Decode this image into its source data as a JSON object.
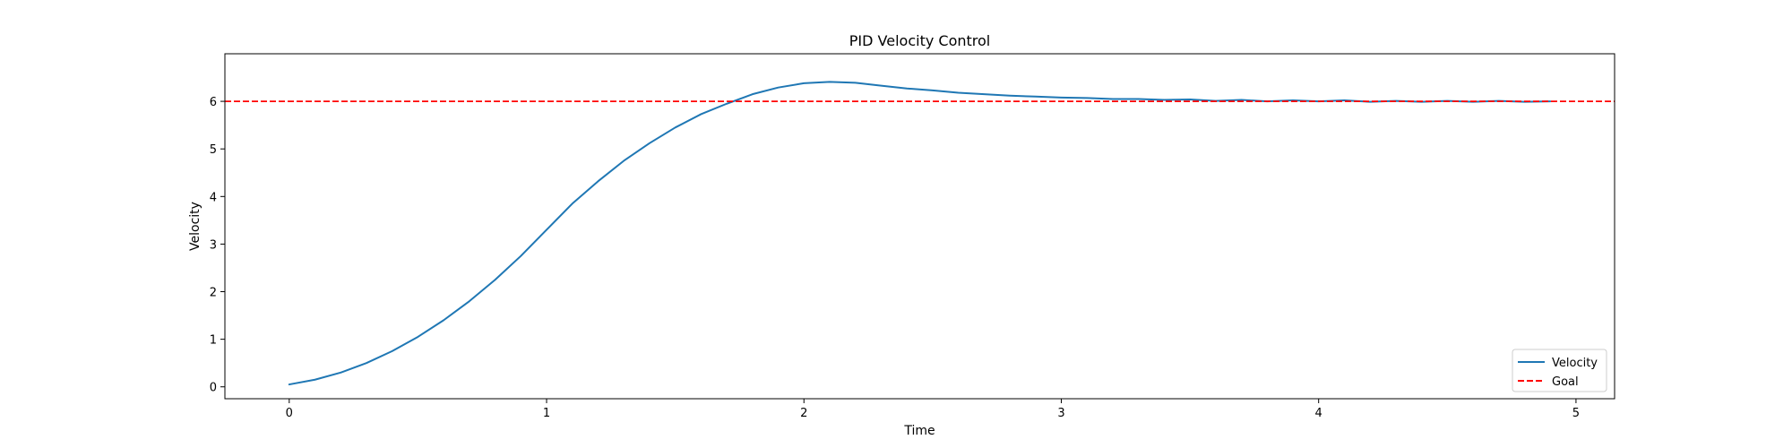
{
  "chart_data": {
    "type": "line",
    "title": "PID Velocity Control",
    "xlabel": "Time",
    "ylabel": "Velocity",
    "xlim": [
      -0.25,
      5.15
    ],
    "ylim": [
      -0.25,
      7.0
    ],
    "xticks": [
      0,
      1,
      2,
      3,
      4,
      5
    ],
    "yticks": [
      0,
      1,
      2,
      3,
      4,
      5,
      6
    ],
    "grid": false,
    "legend_position": "lower right",
    "series": [
      {
        "name": "Velocity",
        "color": "#1f77b4",
        "style": "solid",
        "x": [
          0.0,
          0.1,
          0.2,
          0.3,
          0.4,
          0.5,
          0.6,
          0.7,
          0.8,
          0.9,
          1.0,
          1.1,
          1.2,
          1.3,
          1.4,
          1.5,
          1.6,
          1.7,
          1.8,
          1.9,
          2.0,
          2.1,
          2.2,
          2.3,
          2.4,
          2.5,
          2.6,
          2.7,
          2.8,
          2.9,
          3.0,
          3.1,
          3.2,
          3.3,
          3.4,
          3.5,
          3.6,
          3.7,
          3.8,
          3.9,
          4.0,
          4.1,
          4.2,
          4.3,
          4.4,
          4.5,
          4.6,
          4.7,
          4.8,
          4.9
        ],
        "y": [
          0.05,
          0.15,
          0.3,
          0.5,
          0.75,
          1.05,
          1.4,
          1.8,
          2.25,
          2.75,
          3.3,
          3.85,
          4.32,
          4.75,
          5.12,
          5.45,
          5.73,
          5.95,
          6.15,
          6.29,
          6.38,
          6.41,
          6.39,
          6.33,
          6.27,
          6.23,
          6.18,
          6.15,
          6.12,
          6.1,
          6.08,
          6.07,
          6.05,
          6.05,
          6.03,
          6.04,
          6.01,
          6.03,
          6.0,
          6.02,
          6.0,
          6.02,
          5.99,
          6.01,
          5.99,
          6.01,
          5.99,
          6.01,
          5.99,
          6.0
        ]
      },
      {
        "name": "Goal",
        "color": "#ff0000",
        "style": "dashed",
        "y_constant": 6
      }
    ]
  }
}
